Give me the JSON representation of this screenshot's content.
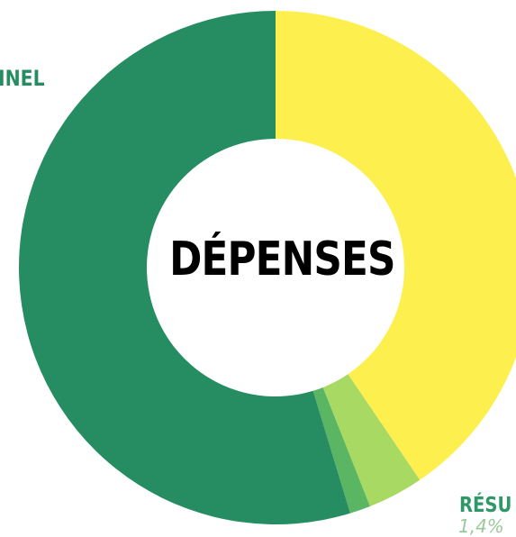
{
  "chart_data": {
    "type": "donut",
    "title": "DÉPENSES",
    "segments": [
      {
        "label": "",
        "value": 40.5,
        "color": "#fdf04e"
      },
      {
        "label": "",
        "value": 3.5,
        "color": "#a8d962"
      },
      {
        "label": "",
        "value": 1.3,
        "color": "#5bb663"
      },
      {
        "label": "",
        "value": 54.7,
        "color": "#268d63"
      }
    ]
  },
  "labels": {
    "left": "INEL",
    "bottom_right": "RÉSU",
    "bottom_right_value": "1,4%"
  }
}
